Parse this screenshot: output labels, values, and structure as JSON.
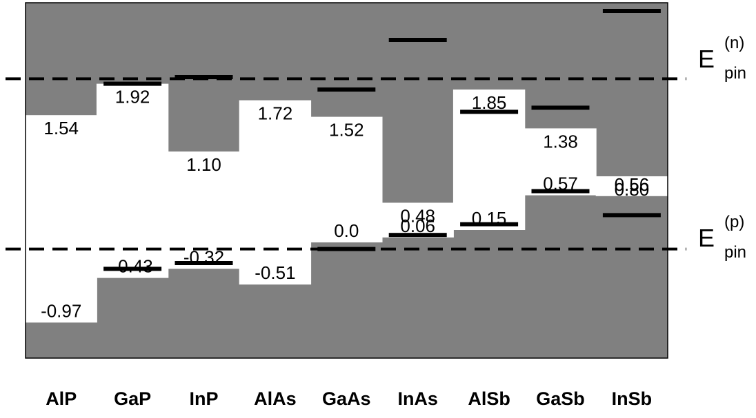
{
  "chart_data": {
    "type": "bar",
    "categories": [
      "AlP",
      "GaP",
      "InP",
      "AlAs",
      "GaAs",
      "InAs",
      "AlSb",
      "GaSb",
      "InSb"
    ],
    "cbm": [
      1.54,
      1.92,
      1.1,
      1.72,
      1.52,
      0.48,
      1.85,
      1.38,
      0.8
    ],
    "vbm": [
      -0.97,
      -0.43,
      -0.32,
      -0.51,
      0.0,
      0.06,
      0.15,
      0.57,
      0.56
    ],
    "cbm_labels": [
      "1.54",
      "1.92",
      "1.10",
      "1.72",
      "1.52",
      "0.48",
      "1.85",
      "1.38",
      "0.80"
    ],
    "vbm_labels": [
      "-0.97",
      "-0.43",
      "-0.32",
      "-0.51",
      "0.0",
      "0.06",
      "0.15",
      "0.57",
      "0.56"
    ],
    "n_pin_marks": [
      null,
      1.92,
      2.0,
      null,
      1.85,
      2.45,
      1.58,
      1.63,
      2.8
    ],
    "p_pin_marks": [
      null,
      -0.32,
      -0.25,
      null,
      -0.08,
      0.09,
      0.22,
      0.62,
      0.33
    ],
    "pinning": {
      "n_symbol": "E",
      "n_superscript": "(n)",
      "n_subscript": "pin",
      "n_energy": 1.98,
      "p_symbol": "E",
      "p_superscript": "(p)",
      "p_subscript": "pin",
      "p_energy": -0.08
    },
    "ylim": [
      -1.4,
      2.9
    ],
    "grid": false,
    "legend": "none",
    "colors": {
      "band": "#808080",
      "gap": "#ffffff",
      "marks": "#000000",
      "frame": "#000000"
    }
  }
}
